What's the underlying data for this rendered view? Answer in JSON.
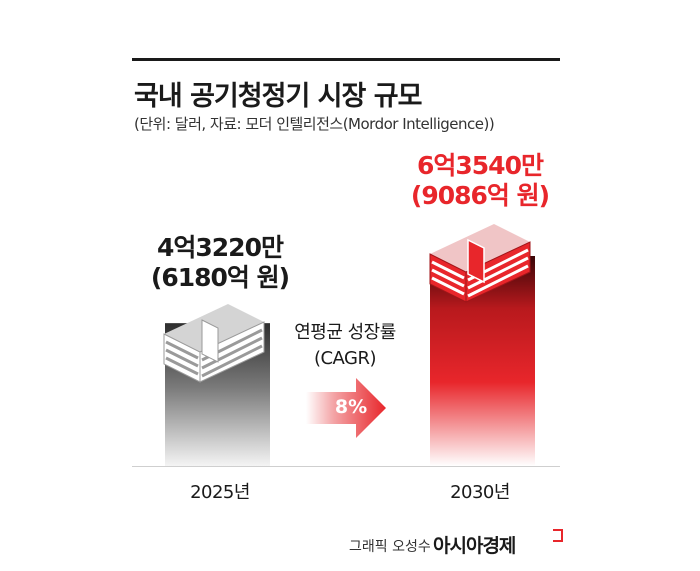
{
  "chart_data": {
    "type": "bar",
    "title": "국내 공기청정기 시장 규모",
    "subtitle": "(단위: 달러, 자료: 모더 인텔리전스(Mordor Intelligence))",
    "categories": [
      "2025년",
      "2030년"
    ],
    "values": [
      432200000,
      635400000
    ],
    "value_labels": [
      {
        "usd": "4억3220만",
        "krw": "(6180억 원)"
      },
      {
        "usd": "6억3540만",
        "krw": "(9086억 원)"
      }
    ],
    "series_colors": [
      "#8a8a8a",
      "#e8262b"
    ],
    "annotation": {
      "label_line1": "연평균 성장률",
      "label_line2": "(CAGR)",
      "value": "8%"
    },
    "ylim": [
      0,
      635400000
    ]
  },
  "credit": {
    "author": "그래픽 오성수",
    "brand": "아시아경제"
  },
  "colors": {
    "accent": "#e8262b",
    "gray": "#8a8a8a",
    "text": "#1a1a1a"
  }
}
